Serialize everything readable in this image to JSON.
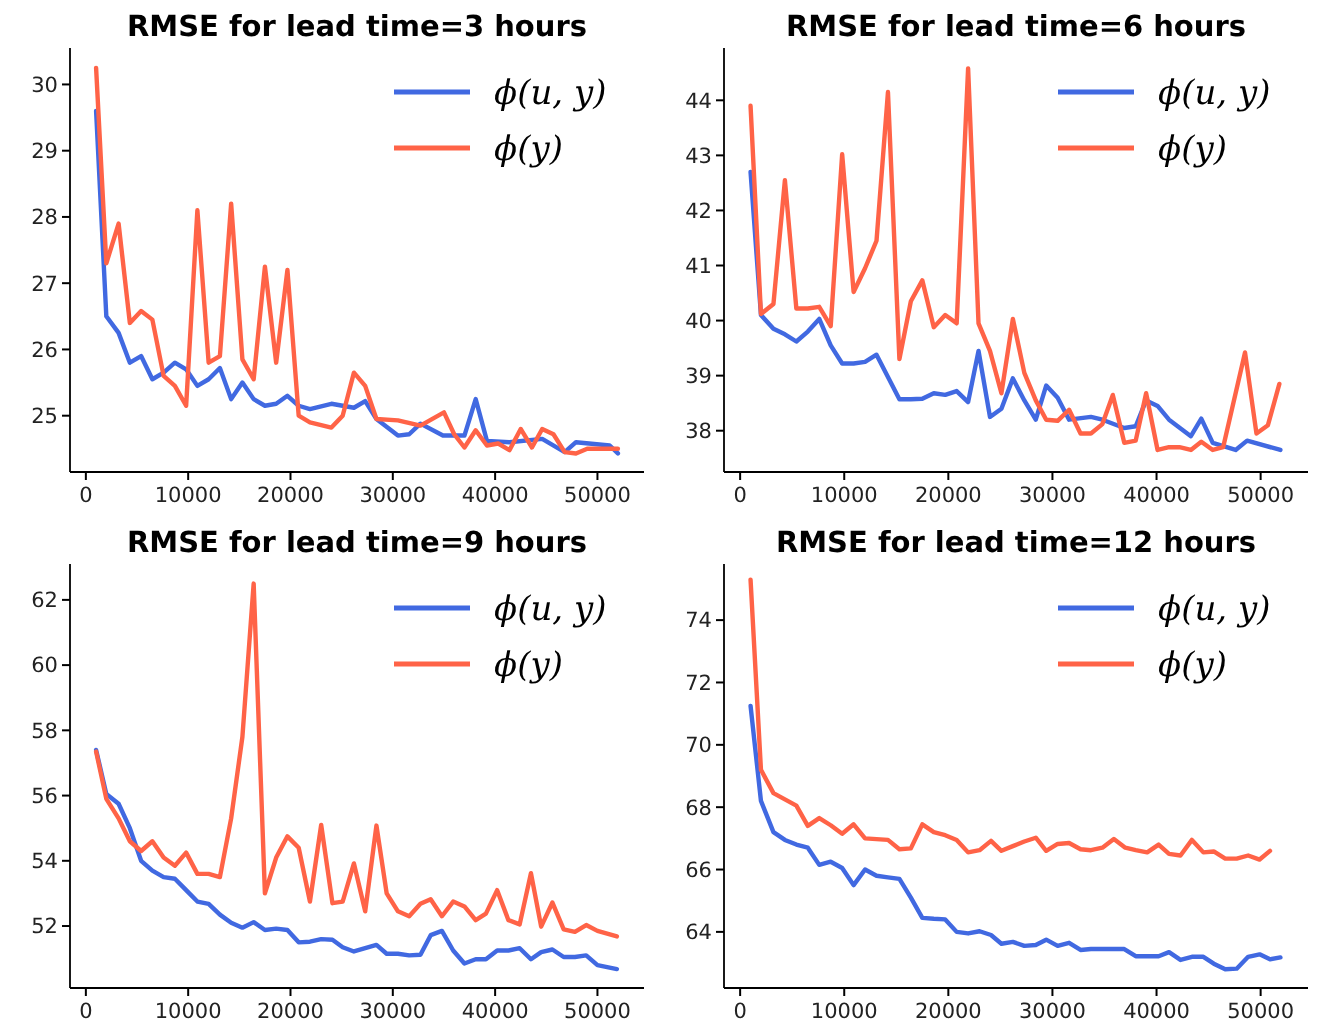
{
  "chart_data": [
    {
      "type": "line",
      "title": "RMSE for lead time=3 hours",
      "xlim": [
        -1550,
        54550
      ],
      "xticks": [
        0,
        10000,
        20000,
        30000,
        40000,
        50000
      ],
      "ylim": [
        24.15,
        30.55
      ],
      "yticks": [
        25,
        26,
        27,
        28,
        29,
        30
      ],
      "legend": "top right",
      "grid": false,
      "series": [
        {
          "name": "ϕ(u, y)",
          "color": "#4169e1",
          "x": [
            1000,
            2000,
            3200,
            4300,
            5400,
            6500,
            7600,
            8700,
            9800,
            10900,
            12000,
            13100,
            14200,
            15300,
            16400,
            17500,
            18600,
            19700,
            20800,
            21900,
            24000,
            26200,
            27300,
            28400,
            30500,
            31600,
            32700,
            34900,
            37000,
            38100,
            39200,
            41400,
            44600,
            46800,
            47900,
            51200,
            52000
          ],
          "values": [
            29.6,
            26.5,
            26.25,
            25.8,
            25.9,
            25.55,
            25.65,
            25.8,
            25.7,
            25.45,
            25.55,
            25.72,
            25.25,
            25.5,
            25.25,
            25.15,
            25.18,
            25.3,
            25.15,
            25.1,
            25.18,
            25.12,
            25.22,
            24.95,
            24.7,
            24.72,
            24.88,
            24.7,
            24.7,
            25.25,
            24.62,
            24.6,
            24.65,
            24.45,
            24.6,
            24.55,
            24.43
          ]
        },
        {
          "name": "ϕ(y)",
          "color": "#ff6347",
          "x": [
            1000,
            2000,
            3200,
            4300,
            5400,
            6500,
            7600,
            8700,
            9800,
            10900,
            12000,
            13100,
            14200,
            15300,
            16400,
            17500,
            18600,
            19700,
            20800,
            21900,
            24000,
            25100,
            26200,
            27300,
            28400,
            30500,
            32700,
            35000,
            36000,
            37000,
            38100,
            39200,
            40300,
            41400,
            42500,
            43600,
            44600,
            45700,
            46800,
            47900,
            49000,
            52000
          ],
          "values": [
            30.25,
            27.3,
            27.9,
            26.4,
            26.58,
            26.45,
            25.6,
            25.45,
            25.15,
            28.1,
            25.8,
            25.9,
            28.2,
            25.85,
            25.55,
            27.25,
            25.8,
            27.2,
            25.0,
            24.9,
            24.82,
            25.0,
            25.65,
            25.45,
            24.95,
            24.93,
            24.85,
            25.05,
            24.72,
            24.52,
            24.78,
            24.55,
            24.58,
            24.48,
            24.8,
            24.52,
            24.8,
            24.72,
            24.45,
            24.43,
            24.5,
            24.5
          ]
        }
      ]
    },
    {
      "type": "line",
      "title": "RMSE for lead time=6 hours",
      "xlim": [
        -1550,
        54550
      ],
      "xticks": [
        0,
        10000,
        20000,
        30000,
        40000,
        50000
      ],
      "ylim": [
        37.25,
        44.95
      ],
      "yticks": [
        38,
        39,
        40,
        41,
        42,
        43,
        44
      ],
      "legend": "top right",
      "grid": false,
      "series": [
        {
          "name": "ϕ(u, y)",
          "color": "#4169e1",
          "x": [
            1000,
            2000,
            3200,
            4300,
            5400,
            6500,
            7600,
            8700,
            9800,
            10900,
            12000,
            13100,
            15300,
            16400,
            17500,
            18600,
            19700,
            20800,
            21900,
            22900,
            24000,
            25100,
            26200,
            27300,
            28400,
            29400,
            30500,
            31600,
            33700,
            34800,
            36900,
            38000,
            39000,
            40100,
            41200,
            43300,
            44300,
            45400,
            47600,
            48700,
            51900
          ],
          "values": [
            42.7,
            40.1,
            39.85,
            39.75,
            39.62,
            39.8,
            40.03,
            39.55,
            39.22,
            39.22,
            39.25,
            39.38,
            38.57,
            38.57,
            38.58,
            38.68,
            38.65,
            38.72,
            38.52,
            39.45,
            38.25,
            38.4,
            38.95,
            38.55,
            38.2,
            38.82,
            38.6,
            38.2,
            38.25,
            38.2,
            38.05,
            38.08,
            38.55,
            38.45,
            38.2,
            37.9,
            38.22,
            37.78,
            37.65,
            37.82,
            37.65
          ]
        },
        {
          "name": "ϕ(y)",
          "color": "#ff6347",
          "x": [
            1000,
            2000,
            3200,
            4300,
            5400,
            6500,
            7600,
            8700,
            9800,
            10900,
            12000,
            13100,
            14200,
            15300,
            16400,
            17500,
            18600,
            19700,
            20800,
            21900,
            22900,
            24000,
            25100,
            26200,
            27300,
            28400,
            29400,
            30500,
            31600,
            32700,
            33700,
            34800,
            35800,
            36900,
            38000,
            39000,
            40100,
            41200,
            42200,
            43300,
            44300,
            45400,
            46400,
            48500,
            49600,
            50700,
            51800
          ],
          "values": [
            43.9,
            40.12,
            40.3,
            42.55,
            40.22,
            40.22,
            40.25,
            39.9,
            43.02,
            40.52,
            40.95,
            41.45,
            44.15,
            39.3,
            40.35,
            40.73,
            39.88,
            40.1,
            39.95,
            44.58,
            39.95,
            39.45,
            38.68,
            40.03,
            39.05,
            38.55,
            38.2,
            38.18,
            38.38,
            37.95,
            37.95,
            38.12,
            38.65,
            37.78,
            37.82,
            38.68,
            37.65,
            37.7,
            37.7,
            37.65,
            37.8,
            37.65,
            37.7,
            39.42,
            37.95,
            38.1,
            38.85
          ]
        }
      ]
    },
    {
      "type": "line",
      "title": "RMSE for lead time=9 hours",
      "xlim": [
        -1550,
        54550
      ],
      "xticks": [
        0,
        10000,
        20000,
        30000,
        40000,
        50000
      ],
      "ylim": [
        50.1,
        63.1
      ],
      "yticks": [
        52,
        54,
        56,
        58,
        60,
        62
      ],
      "legend": "top right",
      "grid": false,
      "series": [
        {
          "name": "ϕ(u, y)",
          "color": "#4169e1",
          "x": [
            1000,
            2000,
            3200,
            4300,
            5400,
            6500,
            7600,
            8700,
            9800,
            10900,
            12000,
            13100,
            14200,
            15300,
            16400,
            17500,
            18600,
            19700,
            20800,
            21900,
            23000,
            24100,
            25100,
            26200,
            27300,
            28400,
            29400,
            30500,
            31600,
            32700,
            33700,
            34800,
            35900,
            37000,
            38100,
            39100,
            40200,
            41300,
            42400,
            43500,
            44500,
            45600,
            46700,
            47800,
            48900,
            50000,
            51900
          ],
          "values": [
            57.4,
            56.05,
            55.75,
            55.0,
            54.0,
            53.7,
            53.5,
            53.45,
            53.1,
            52.75,
            52.68,
            52.35,
            52.1,
            51.95,
            52.12,
            51.88,
            51.92,
            51.88,
            51.5,
            51.52,
            51.6,
            51.58,
            51.35,
            51.22,
            51.32,
            51.42,
            51.15,
            51.15,
            51.1,
            51.12,
            51.72,
            51.85,
            51.25,
            50.85,
            50.98,
            50.98,
            51.25,
            51.25,
            51.32,
            50.98,
            51.2,
            51.28,
            51.05,
            51.05,
            51.1,
            50.8,
            50.68
          ]
        },
        {
          "name": "ϕ(y)",
          "color": "#ff6347",
          "x": [
            1000,
            2000,
            3200,
            4300,
            5400,
            6500,
            7600,
            8700,
            9800,
            10900,
            12000,
            13100,
            14200,
            15300,
            16400,
            17500,
            18600,
            19700,
            20800,
            21900,
            23000,
            24100,
            25100,
            26200,
            27300,
            28400,
            29400,
            30500,
            31600,
            32700,
            33700,
            34800,
            35900,
            37000,
            38100,
            39100,
            40200,
            41300,
            42400,
            43500,
            44500,
            45600,
            46700,
            47800,
            48900,
            50000,
            51900
          ],
          "values": [
            57.35,
            55.9,
            55.3,
            54.6,
            54.3,
            54.6,
            54.1,
            53.85,
            54.25,
            53.6,
            53.6,
            53.5,
            55.3,
            57.8,
            62.5,
            53.0,
            54.1,
            54.75,
            54.4,
            52.75,
            55.1,
            52.7,
            52.75,
            53.92,
            52.45,
            55.08,
            53.0,
            52.45,
            52.3,
            52.68,
            52.82,
            52.3,
            52.75,
            52.6,
            52.18,
            52.38,
            53.1,
            52.18,
            52.05,
            53.62,
            51.98,
            52.72,
            51.9,
            51.82,
            52.03,
            51.85,
            51.68
          ]
        }
      ]
    },
    {
      "type": "line",
      "title": "RMSE for lead time=12 hours",
      "xlim": [
        -1550,
        54550
      ],
      "xticks": [
        0,
        10000,
        20000,
        30000,
        40000,
        50000
      ],
      "ylim": [
        62.2,
        75.8
      ],
      "yticks": [
        64,
        66,
        68,
        70,
        72,
        74
      ],
      "legend": "top right",
      "grid": false,
      "series": [
        {
          "name": "ϕ(u, y)",
          "color": "#4169e1",
          "x": [
            1000,
            2000,
            3200,
            4300,
            5400,
            6500,
            7600,
            8700,
            9800,
            10900,
            12000,
            13100,
            14200,
            15300,
            16400,
            17500,
            18600,
            19700,
            20800,
            21900,
            23000,
            24100,
            25100,
            26200,
            27300,
            28400,
            29400,
            30500,
            31600,
            32700,
            33700,
            36900,
            38000,
            40200,
            41200,
            42300,
            43400,
            44500,
            45500,
            46600,
            47700,
            48800,
            49900,
            50900,
            51900
          ],
          "values": [
            71.25,
            68.2,
            67.2,
            66.95,
            66.8,
            66.7,
            66.15,
            66.25,
            66.05,
            65.5,
            66.0,
            65.8,
            65.75,
            65.7,
            65.1,
            64.45,
            64.42,
            64.4,
            64.0,
            63.95,
            64.02,
            63.9,
            63.62,
            63.68,
            63.55,
            63.58,
            63.75,
            63.55,
            63.65,
            63.42,
            63.45,
            63.45,
            63.22,
            63.22,
            63.35,
            63.1,
            63.2,
            63.2,
            62.98,
            62.8,
            62.82,
            63.2,
            63.28,
            63.12,
            63.18
          ]
        },
        {
          "name": "ϕ(y)",
          "color": "#ff6347",
          "x": [
            1000,
            2000,
            3200,
            4300,
            5400,
            6500,
            7600,
            8700,
            9800,
            10900,
            12000,
            14200,
            15300,
            16400,
            17500,
            18600,
            19700,
            20800,
            21900,
            23000,
            24100,
            25100,
            26200,
            27300,
            28400,
            29400,
            30500,
            31600,
            32700,
            33700,
            34800,
            35900,
            37000,
            38000,
            39100,
            40200,
            41200,
            42300,
            43400,
            44500,
            45500,
            46600,
            47700,
            48800,
            49900,
            50900
          ],
          "values": [
            75.3,
            69.2,
            68.45,
            68.25,
            68.05,
            67.4,
            67.65,
            67.42,
            67.15,
            67.45,
            67.0,
            66.95,
            66.65,
            66.68,
            67.45,
            67.2,
            67.1,
            66.95,
            66.55,
            66.62,
            66.92,
            66.6,
            66.75,
            66.9,
            67.02,
            66.6,
            66.82,
            66.85,
            66.65,
            66.62,
            66.7,
            66.98,
            66.7,
            66.62,
            66.55,
            66.8,
            66.5,
            66.45,
            66.95,
            66.55,
            66.58,
            66.35,
            66.35,
            66.45,
            66.32,
            66.6
          ]
        }
      ]
    }
  ]
}
